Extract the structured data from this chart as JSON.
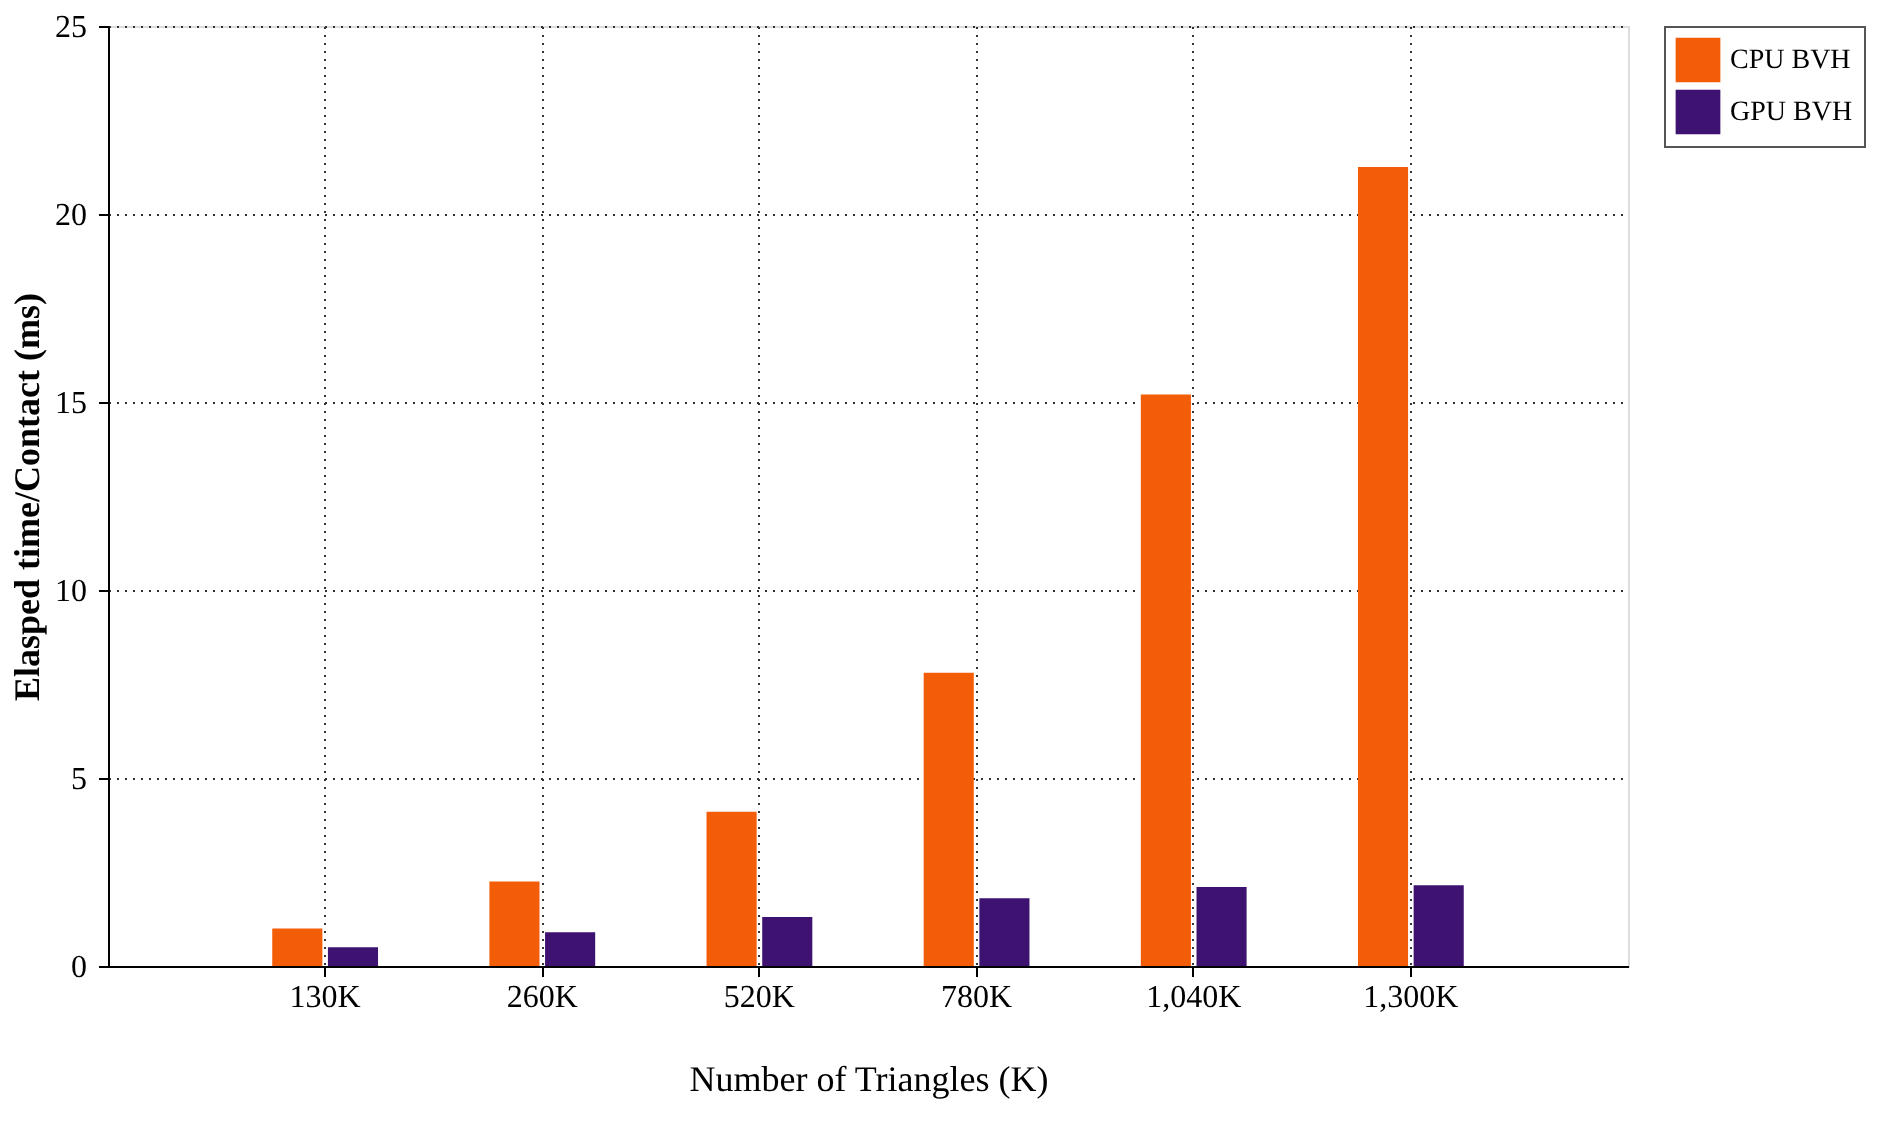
{
  "chart_data": {
    "type": "bar",
    "xlabel": "Number of Triangles (K)",
    "ylabel": "Elasped time/Contact (ms)",
    "categories": [
      "130K",
      "260K",
      "520K",
      "780K",
      "1,040K",
      "1,300K"
    ],
    "series": [
      {
        "name": "CPU BVH",
        "color": "#f45d07",
        "values": [
          1.0,
          2.25,
          4.1,
          7.8,
          15.2,
          21.25
        ]
      },
      {
        "name": "GPU BVH",
        "color": "#3d1270",
        "values": [
          0.5,
          0.9,
          1.3,
          1.8,
          2.1,
          2.15
        ]
      }
    ],
    "ylim": [
      0,
      25
    ],
    "yticks": [
      0,
      5,
      10,
      15,
      20,
      25
    ],
    "grid": true,
    "legend": "top right"
  }
}
